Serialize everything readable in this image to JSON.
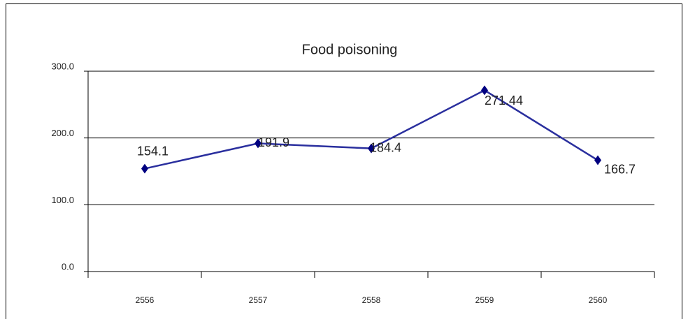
{
  "chart_data": {
    "type": "line",
    "title": "Food poisoning",
    "categories": [
      "2556",
      "2557",
      "2558",
      "2559",
      "2560"
    ],
    "series": [
      {
        "name": "Food poisoning",
        "color": "#1a237e",
        "values": [
          154.1,
          191.9,
          184.4,
          271.44,
          166.7
        ]
      }
    ],
    "ylim": [
      0,
      300
    ],
    "yticks": [
      {
        "value": 0,
        "label": "0.0"
      },
      {
        "value": 100,
        "label": "100.0"
      },
      {
        "value": 200,
        "label": "200.0"
      },
      {
        "value": 300,
        "label": "300.0"
      }
    ],
    "grid": true
  }
}
